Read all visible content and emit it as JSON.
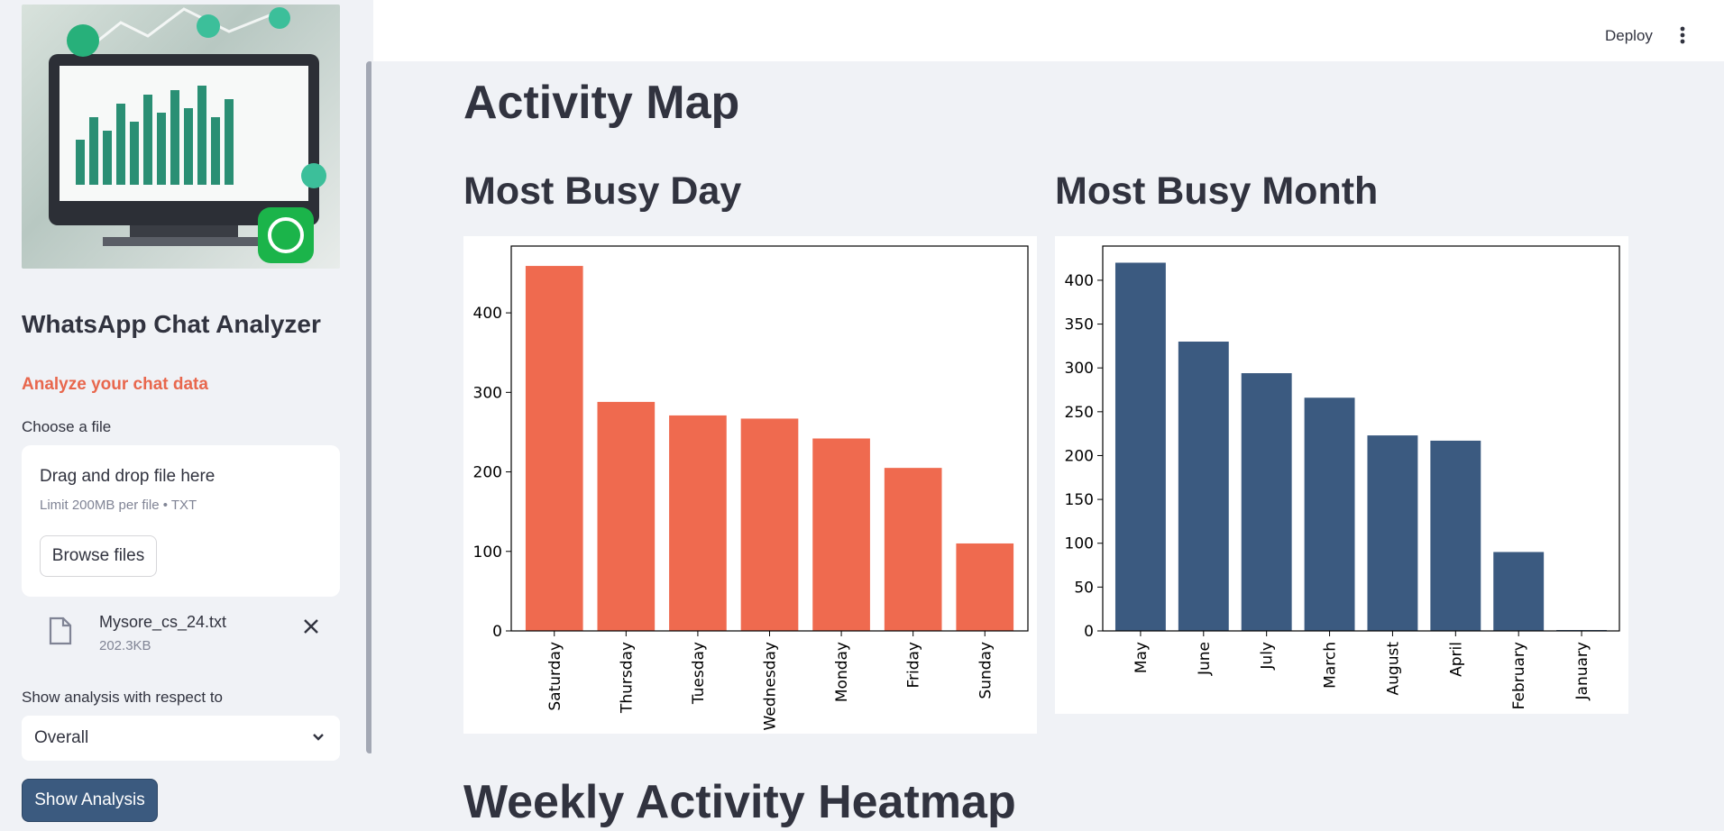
{
  "sidebar": {
    "title": "WhatsApp Chat Analyzer",
    "subtitle": "Analyze your chat data",
    "file_label": "Choose a file",
    "uploader": {
      "title": "Drag and drop file here",
      "limit": "Limit 200MB per file • TXT",
      "browse_label": "Browse files"
    },
    "uploaded_file": {
      "name": "Mysore_cs_24.txt",
      "size": "202.3KB"
    },
    "analysis_label": "Show analysis with respect to",
    "analysis_selected": "Overall",
    "show_button": "Show Analysis"
  },
  "header": {
    "deploy_label": "Deploy"
  },
  "main": {
    "title": "Activity Map",
    "day_heading": "Most Busy Day",
    "month_heading": "Most Busy Month",
    "next_heading": "Weekly Activity Heatmap"
  },
  "colors": {
    "day_bar": "#ef6a4f",
    "month_bar": "#3b5a80",
    "accent": "#e8674d"
  },
  "chart_data": [
    {
      "type": "bar",
      "categories": [
        "Saturday",
        "Thursday",
        "Tuesday",
        "Wednesday",
        "Monday",
        "Friday",
        "Sunday"
      ],
      "values": [
        459,
        288,
        271,
        267,
        242,
        205,
        110
      ],
      "ylim": [
        0,
        484
      ],
      "yticks": [
        0,
        100,
        200,
        300,
        400
      ],
      "xlabel": "",
      "ylabel": "",
      "grid": false
    },
    {
      "type": "bar",
      "categories": [
        "May",
        "June",
        "July",
        "March",
        "August",
        "April",
        "February",
        "January"
      ],
      "values": [
        420,
        330,
        294,
        266,
        223,
        217,
        90,
        1
      ],
      "ylim": [
        0,
        439
      ],
      "yticks": [
        0,
        50,
        100,
        150,
        200,
        250,
        300,
        350,
        400
      ],
      "xlabel": "",
      "ylabel": "",
      "grid": false
    }
  ]
}
